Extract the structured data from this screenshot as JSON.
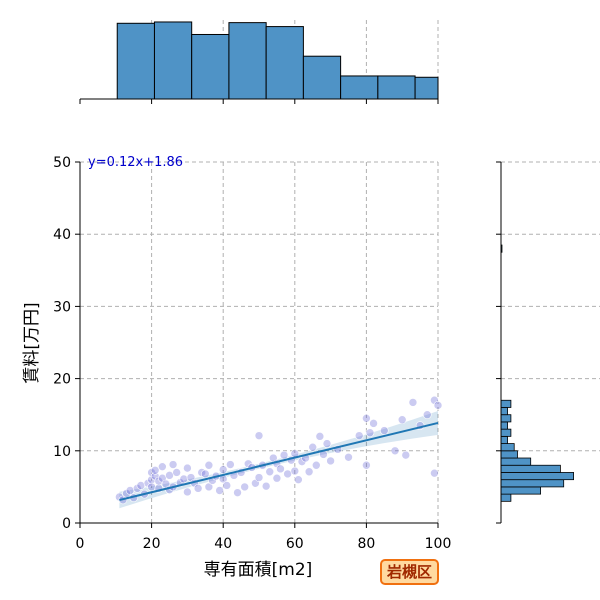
{
  "badge": "岩槻区",
  "chart_data": {
    "type": "scatter",
    "title": "",
    "xlabel": "専有面積[m2]",
    "ylabel": "賃料[万円]",
    "xlim": [
      0,
      100
    ],
    "ylim": [
      0,
      50
    ],
    "xticks": [
      0,
      20,
      40,
      60,
      80,
      100
    ],
    "yticks": [
      0,
      10,
      20,
      30,
      40,
      50
    ],
    "grid": true,
    "regression": {
      "slope": 0.12,
      "intercept": 1.86,
      "x_range": [
        11,
        100
      ],
      "label": "y=0.12x+1.86"
    },
    "points": [
      [
        11,
        3.6
      ],
      [
        12,
        3.2
      ],
      [
        13,
        4.1
      ],
      [
        14,
        4.5
      ],
      [
        15,
        3.5
      ],
      [
        16,
        4.8
      ],
      [
        17,
        5.2
      ],
      [
        18,
        4.0
      ],
      [
        19,
        5.5
      ],
      [
        20,
        6.0
      ],
      [
        20,
        7.0
      ],
      [
        20,
        5.0
      ],
      [
        21,
        6.5
      ],
      [
        21,
        7.3
      ],
      [
        22,
        4.8
      ],
      [
        22,
        5.8
      ],
      [
        23,
        6.2
      ],
      [
        23,
        7.8
      ],
      [
        24,
        5.4
      ],
      [
        25,
        6.6
      ],
      [
        25,
        4.6
      ],
      [
        26,
        5.0
      ],
      [
        26,
        8.1
      ],
      [
        27,
        7.0
      ],
      [
        28,
        5.6
      ],
      [
        29,
        6.1
      ],
      [
        30,
        4.3
      ],
      [
        30,
        7.6
      ],
      [
        31,
        6.3
      ],
      [
        32,
        5.5
      ],
      [
        33,
        4.8
      ],
      [
        34,
        7.0
      ],
      [
        35,
        6.8
      ],
      [
        36,
        5.0
      ],
      [
        36,
        8.0
      ],
      [
        37,
        5.9
      ],
      [
        38,
        6.5
      ],
      [
        39,
        4.5
      ],
      [
        40,
        6.1
      ],
      [
        40,
        7.4
      ],
      [
        41,
        5.2
      ],
      [
        42,
        8.1
      ],
      [
        43,
        6.6
      ],
      [
        44,
        4.2
      ],
      [
        45,
        7.0
      ],
      [
        46,
        5.0
      ],
      [
        47,
        8.2
      ],
      [
        48,
        7.7
      ],
      [
        49,
        5.5
      ],
      [
        50,
        12.1
      ],
      [
        50,
        6.3
      ],
      [
        51,
        8.0
      ],
      [
        52,
        5.1
      ],
      [
        53,
        7.1
      ],
      [
        54,
        9.0
      ],
      [
        55,
        6.2
      ],
      [
        55,
        8.2
      ],
      [
        56,
        7.5
      ],
      [
        57,
        9.4
      ],
      [
        58,
        6.8
      ],
      [
        59,
        8.7
      ],
      [
        60,
        7.2
      ],
      [
        60,
        9.6
      ],
      [
        61,
        6.0
      ],
      [
        62,
        8.5
      ],
      [
        63,
        9.0
      ],
      [
        64,
        7.1
      ],
      [
        65,
        10.5
      ],
      [
        66,
        8.0
      ],
      [
        67,
        12.0
      ],
      [
        68,
        9.5
      ],
      [
        69,
        11.0
      ],
      [
        70,
        8.6
      ],
      [
        72,
        10.2
      ],
      [
        75,
        9.1
      ],
      [
        78,
        12.1
      ],
      [
        80,
        14.5
      ],
      [
        80,
        8.0
      ],
      [
        81,
        12.5
      ],
      [
        82,
        13.8
      ],
      [
        85,
        12.8
      ],
      [
        88,
        10.0
      ],
      [
        90,
        14.3
      ],
      [
        91,
        9.4
      ],
      [
        93,
        16.7
      ],
      [
        95,
        13.5
      ],
      [
        97,
        15.0
      ],
      [
        99,
        17.0
      ],
      [
        99,
        6.9
      ],
      [
        100,
        16.3
      ]
    ],
    "x_marginal": {
      "bin_edges": [
        0,
        10.4,
        20.8,
        31.2,
        41.6,
        52,
        62.4,
        72.8,
        83.2,
        93.6,
        100
      ],
      "counts": [
        0,
        11.5,
        11.7,
        9.8,
        11.6,
        11.0,
        6.5,
        3.5,
        3.5,
        3.3
      ]
    },
    "y_marginal": {
      "bin_edges": [
        3,
        4,
        5,
        6,
        7,
        8,
        9,
        10,
        11,
        12,
        13,
        14,
        15,
        16,
        17,
        37.5,
        38.5
      ],
      "counts": [
        3,
        12,
        19,
        22,
        18,
        9,
        5,
        4,
        2,
        3,
        2,
        3,
        2,
        3,
        0,
        0.3
      ]
    }
  }
}
